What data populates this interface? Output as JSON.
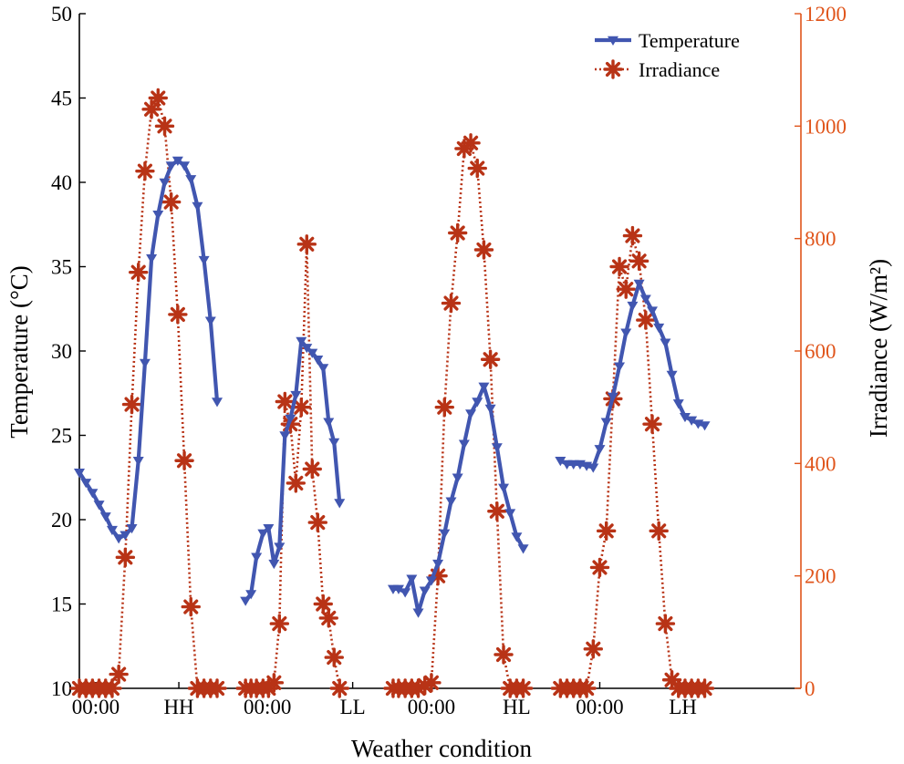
{
  "chart_data": {
    "type": "line",
    "xlabel": "Weather condition",
    "ylabel_left": "Temperature (°C)",
    "ylabel_right": "Irradiance (W/m²)",
    "ylim_left": [
      10,
      50
    ],
    "ylim_right": [
      0,
      1200
    ],
    "yticks_left": [
      "10",
      "15",
      "20",
      "25",
      "30",
      "35",
      "40",
      "45",
      "50"
    ],
    "yticks_right": [
      "0",
      "200",
      "400",
      "600",
      "800",
      "1000",
      "1200"
    ],
    "x_tick_labels": [
      {
        "label": "00:00",
        "x": 0.15
      },
      {
        "label": "HH",
        "x": 0.91
      },
      {
        "label": "00:00",
        "x": 1.72
      },
      {
        "label": "LL",
        "x": 2.5
      },
      {
        "label": "00:00",
        "x": 3.22
      },
      {
        "label": "HL",
        "x": 4.0
      },
      {
        "label": "00:00",
        "x": 4.76
      },
      {
        "label": "LH",
        "x": 5.52
      }
    ],
    "xlim": [
      0,
      6.6
    ],
    "colors": {
      "temperature": "#4156b0",
      "irradiance": "#b83316",
      "right_axis": "#e0551b"
    },
    "legend": [
      "Temperature",
      "Irradiance"
    ],
    "series": [
      {
        "name": "Temperature",
        "segments": [
          {
            "condition": "HH",
            "x": [
              0.0,
              0.06,
              0.12,
              0.18,
              0.24,
              0.3,
              0.36,
              0.42,
              0.48,
              0.54,
              0.6,
              0.66,
              0.72,
              0.78,
              0.84,
              0.9,
              0.96,
              1.02,
              1.08,
              1.14,
              1.2,
              1.26
            ],
            "y": [
              22.8,
              22.2,
              21.6,
              20.9,
              20.2,
              19.4,
              18.9,
              19.1,
              19.5,
              23.5,
              29.3,
              35.5,
              38.1,
              40.0,
              41.0,
              41.3,
              41.0,
              40.2,
              38.6,
              35.4,
              31.8,
              27.0
            ]
          },
          {
            "condition": "LL",
            "x": [
              1.52,
              1.57,
              1.62,
              1.68,
              1.73,
              1.78,
              1.83,
              1.88,
              1.93,
              1.98,
              2.03,
              2.08,
              2.13,
              2.18,
              2.23,
              2.28,
              2.33,
              2.38
            ],
            "y": [
              15.2,
              15.6,
              17.8,
              19.2,
              19.5,
              17.4,
              18.4,
              25.0,
              26.0,
              27.4,
              30.6,
              30.2,
              29.9,
              29.5,
              29.0,
              25.8,
              24.6,
              21.0
            ]
          },
          {
            "condition": "HL",
            "x": [
              2.87,
              2.92,
              2.98,
              3.04,
              3.1,
              3.16,
              3.22,
              3.28,
              3.34,
              3.4,
              3.46,
              3.52,
              3.58,
              3.64,
              3.7,
              3.76,
              3.82,
              3.88,
              3.94,
              4.0,
              4.06
            ],
            "y": [
              15.9,
              15.9,
              15.7,
              16.5,
              14.5,
              15.8,
              16.4,
              17.4,
              19.2,
              21.1,
              22.5,
              24.5,
              26.3,
              27.0,
              27.9,
              26.6,
              24.3,
              21.9,
              20.4,
              19.0,
              18.3
            ]
          },
          {
            "condition": "LH",
            "x": [
              4.4,
              4.46,
              4.52,
              4.58,
              4.64,
              4.7,
              4.76,
              4.82,
              4.88,
              4.94,
              5.0,
              5.06,
              5.12,
              5.18,
              5.24,
              5.3,
              5.36,
              5.42,
              5.48,
              5.54,
              5.6,
              5.66,
              5.72
            ],
            "y": [
              23.5,
              23.3,
              23.3,
              23.3,
              23.2,
              23.1,
              24.2,
              25.8,
              27.3,
              29.1,
              31.1,
              32.7,
              34.0,
              33.1,
              32.4,
              31.4,
              30.5,
              28.6,
              26.9,
              26.1,
              25.9,
              25.7,
              25.6
            ]
          }
        ]
      },
      {
        "name": "Irradiance",
        "segments": [
          {
            "condition": "HH",
            "x": [
              0.0,
              0.06,
              0.12,
              0.18,
              0.24,
              0.3,
              0.36,
              0.42,
              0.48,
              0.54,
              0.6,
              0.66,
              0.72,
              0.78,
              0.84,
              0.9,
              0.96,
              1.02,
              1.08,
              1.14,
              1.2,
              1.26
            ],
            "y": [
              0,
              0,
              0,
              0,
              0,
              0,
              25,
              233,
              505,
              740,
              920,
              1030,
              1050,
              1000,
              865,
              665,
              405,
              145,
              0,
              0,
              0,
              0
            ]
          },
          {
            "condition": "LL",
            "x": [
              1.52,
              1.57,
              1.62,
              1.68,
              1.73,
              1.78,
              1.83,
              1.88,
              1.93,
              1.98,
              2.03,
              2.08,
              2.13,
              2.18,
              2.23,
              2.28,
              2.33,
              2.38
            ],
            "y": [
              0,
              0,
              0,
              0,
              0,
              10,
              115,
              510,
              470,
              365,
              500,
              790,
              390,
              295,
              150,
              125,
              55,
              0
            ]
          },
          {
            "condition": "HL",
            "x": [
              2.87,
              2.92,
              2.98,
              3.04,
              3.1,
              3.16,
              3.22,
              3.28,
              3.34,
              3.4,
              3.46,
              3.52,
              3.58,
              3.64,
              3.7,
              3.76,
              3.82,
              3.88,
              3.94,
              4.0,
              4.06
            ],
            "y": [
              0,
              0,
              0,
              0,
              0,
              5,
              10,
              200,
              500,
              685,
              810,
              960,
              970,
              925,
              780,
              585,
              315,
              60,
              0,
              0,
              0
            ]
          },
          {
            "condition": "LH",
            "x": [
              4.4,
              4.46,
              4.52,
              4.58,
              4.64,
              4.7,
              4.76,
              4.82,
              4.88,
              4.94,
              5.0,
              5.06,
              5.12,
              5.18,
              5.24,
              5.3,
              5.36,
              5.42,
              5.48,
              5.54,
              5.6,
              5.66,
              5.72
            ],
            "y": [
              0,
              0,
              0,
              0,
              0,
              70,
              215,
              280,
              515,
              750,
              710,
              805,
              760,
              655,
              470,
              280,
              115,
              15,
              0,
              0,
              0,
              0,
              0
            ]
          }
        ]
      }
    ]
  }
}
